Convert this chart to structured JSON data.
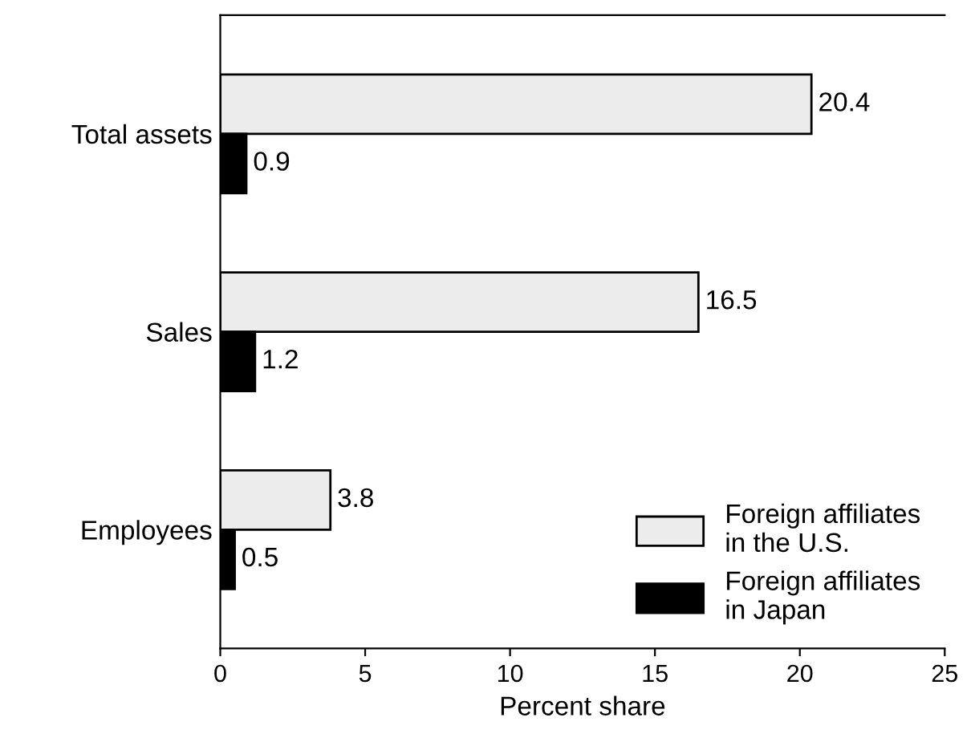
{
  "chart_data": {
    "type": "bar",
    "orientation": "horizontal",
    "xlabel": "Percent share",
    "categories": [
      "Total assets",
      "Sales",
      "Employees"
    ],
    "series": [
      {
        "name": "Foreign affiliates\nin the U.S.",
        "color": "#ececec",
        "values": [
          20.4,
          16.5,
          3.8
        ]
      },
      {
        "name": "Foreign affiliates\nin Japan",
        "color": "#000000",
        "values": [
          0.9,
          1.2,
          0.5
        ]
      }
    ],
    "xlim": [
      0,
      25
    ],
    "xticks": [
      0,
      5,
      10,
      15,
      20,
      25
    ],
    "data_labels": true,
    "legend": "bottom right",
    "grid": false
  }
}
